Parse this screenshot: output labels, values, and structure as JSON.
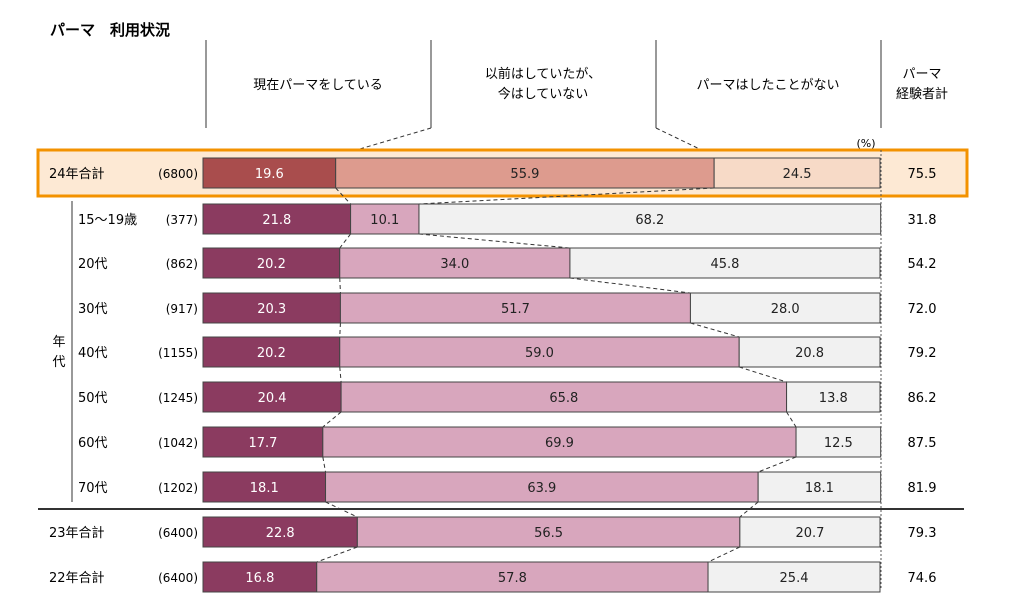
{
  "title": "パーマ　利用状況",
  "headers": {
    "col1": "現在パーマをしている",
    "col2_line1": "以前はしていたが、",
    "col2_line2": "今はしていない",
    "col3": "パーマはしたことがない",
    "col4_line1": "パーマ",
    "col4_line2": "経験者計"
  },
  "unit": "(%)",
  "age_group_label": "年代",
  "colors": {
    "highlight_border": "#f39200",
    "highlight_bg": "#fde9d4",
    "seg1_2024": "#a94d4d",
    "seg2_2024": "#dd9b8e",
    "seg3_2024": "#f7dac7",
    "seg1": "#8b3b60",
    "seg2": "#d8a6bd",
    "seg3": "#f1f1f1"
  },
  "chart_data": {
    "type": "bar",
    "stacked": true,
    "orientation": "horizontal",
    "xlim": [
      0,
      100
    ],
    "series_names": [
      "現在パーマをしている",
      "以前はしていたが、今はしていない",
      "パーマはしたことがない"
    ],
    "rows": [
      {
        "label": "24年合計",
        "n": "(6800)",
        "values": [
          19.6,
          55.9,
          24.5
        ],
        "total": "75.5",
        "highlight": true
      },
      {
        "label": "15～19歳",
        "n": "(377)",
        "values": [
          21.8,
          10.1,
          68.2
        ],
        "total": "31.8"
      },
      {
        "label": "20代",
        "n": "(862)",
        "values": [
          20.2,
          34.0,
          45.8
        ],
        "total": "54.2"
      },
      {
        "label": "30代",
        "n": "(917)",
        "values": [
          20.3,
          51.7,
          28.0
        ],
        "total": "72.0"
      },
      {
        "label": "40代",
        "n": "(1155)",
        "values": [
          20.2,
          59.0,
          20.8
        ],
        "total": "79.2"
      },
      {
        "label": "50代",
        "n": "(1245)",
        "values": [
          20.4,
          65.8,
          13.8
        ],
        "total": "86.2"
      },
      {
        "label": "60代",
        "n": "(1042)",
        "values": [
          17.7,
          69.9,
          12.5
        ],
        "total": "87.5"
      },
      {
        "label": "70代",
        "n": "(1202)",
        "values": [
          18.1,
          63.9,
          18.1
        ],
        "total": "81.9"
      },
      {
        "label": "23年合計",
        "n": "(6400)",
        "values": [
          22.8,
          56.5,
          20.7
        ],
        "total": "79.3"
      },
      {
        "label": "22年合計",
        "n": "(6400)",
        "values": [
          16.8,
          57.8,
          25.4
        ],
        "total": "74.6"
      }
    ]
  }
}
